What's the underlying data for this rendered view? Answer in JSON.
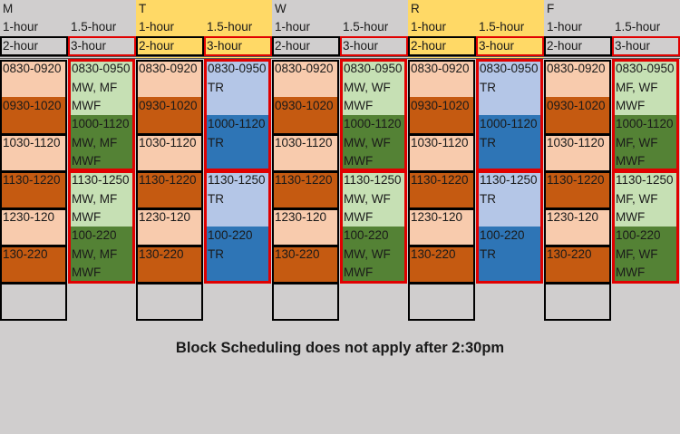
{
  "colors": {
    "background": "#d0cece",
    "highlight": "#ffd966",
    "one_hour_light": "#f8cbad",
    "one_hour_dark": "#c55a11",
    "mwf_light": "#c6e0b4",
    "mwf_dark": "#548235",
    "tr_light": "#b4c6e7",
    "tr_dark": "#2e75b6",
    "frame_1h": "#000000",
    "frame_15h": "#e00000"
  },
  "days": [
    {
      "letter": "M",
      "highlighted": false,
      "col1_label": "1-hour",
      "col2_label": "1.5-hour",
      "col1_sub": "2-hour",
      "col2_sub": "3-hour",
      "one_hour": [
        "0830-0920",
        "0930-1020",
        "1030-1120",
        "1130-1220",
        "1230-120",
        "130-220"
      ],
      "long_type": "mwf",
      "long": [
        [
          "0830-0950",
          "MW, MF",
          "MWF"
        ],
        [
          "1000-1120",
          "MW, MF",
          "MWF"
        ],
        [
          "1130-1250",
          "MW, MF",
          "MWF"
        ],
        [
          "100-220",
          "MW, MF",
          "MWF"
        ]
      ]
    },
    {
      "letter": "T",
      "highlighted": true,
      "col1_label": "1-hour",
      "col2_label": "1.5-hour",
      "col1_sub": "2-hour",
      "col2_sub": "3-hour",
      "one_hour": [
        "0830-0920",
        "0930-1020",
        "1030-1120",
        "1130-1220",
        "1230-120",
        "130-220"
      ],
      "long_type": "tr",
      "long": [
        [
          "0830-0950",
          "TR"
        ],
        [
          "1000-1120",
          "TR"
        ],
        [
          "1130-1250",
          "TR"
        ],
        [
          "100-220",
          "TR"
        ]
      ]
    },
    {
      "letter": "W",
      "highlighted": false,
      "col1_label": "1-hour",
      "col2_label": "1.5-hour",
      "col1_sub": "2-hour",
      "col2_sub": "3-hour",
      "one_hour": [
        "0830-0920",
        "0930-1020",
        "1030-1120",
        "1130-1220",
        "1230-120",
        "130-220"
      ],
      "long_type": "mwf",
      "long": [
        [
          "0830-0950",
          "MW, WF",
          "MWF"
        ],
        [
          "1000-1120",
          "MW, WF",
          "MWF"
        ],
        [
          "1130-1250",
          "MW, WF",
          "MWF"
        ],
        [
          "100-220",
          "MW, WF",
          "MWF"
        ]
      ]
    },
    {
      "letter": "R",
      "highlighted": true,
      "col1_label": "1-hour",
      "col2_label": "1.5-hour",
      "col1_sub": "2-hour",
      "col2_sub": "3-hour",
      "one_hour": [
        "0830-0920",
        "0930-1020",
        "1030-1120",
        "1130-1220",
        "1230-120",
        "130-220"
      ],
      "long_type": "tr",
      "long": [
        [
          "0830-0950",
          "TR"
        ],
        [
          "1000-1120",
          "TR"
        ],
        [
          "1130-1250",
          "TR"
        ],
        [
          "100-220",
          "TR"
        ]
      ]
    },
    {
      "letter": "F",
      "highlighted": false,
      "col1_label": "1-hour",
      "col2_label": "1.5-hour",
      "col1_sub": "2-hour",
      "col2_sub": "3-hour",
      "one_hour": [
        "0830-0920",
        "0930-1020",
        "1030-1120",
        "1130-1220",
        "1230-120",
        "130-220"
      ],
      "long_type": "mwf",
      "long": [
        [
          "0830-0950",
          "MF, WF",
          "MWF"
        ],
        [
          "1000-1120",
          "MF, WF",
          "MWF"
        ],
        [
          "1130-1250",
          "MF, WF",
          "MWF"
        ],
        [
          "100-220",
          "MF, WF",
          "MWF"
        ]
      ]
    }
  ],
  "footer_note": "Block Scheduling does not apply after 2:30pm"
}
